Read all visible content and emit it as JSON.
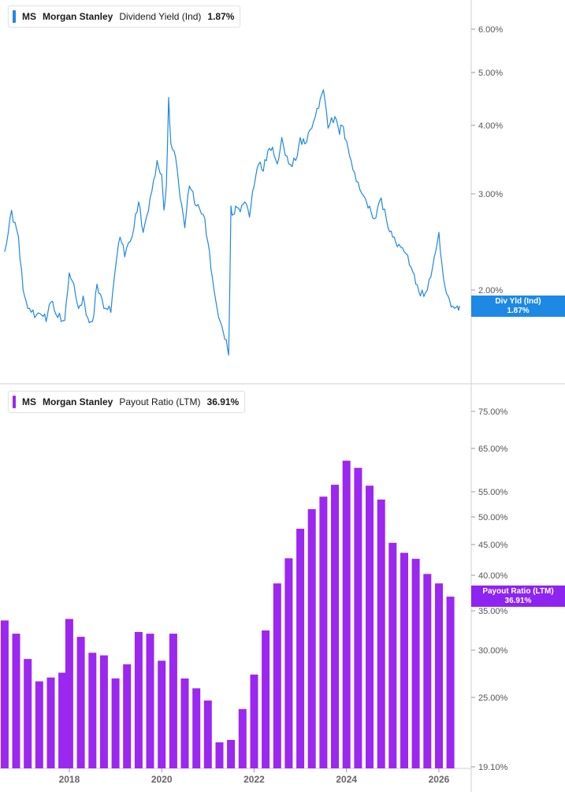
{
  "colors": {
    "yield": "#1e88e5",
    "payout": "#9c27f0",
    "yield_tag": "#1e88e5",
    "payout_tag": "#8e24f0"
  },
  "legend_top": {
    "ticker": "MS",
    "name": "Morgan Stanley",
    "metric": "Dividend Yield (Ind)",
    "value": "1.87%"
  },
  "legend_bottom": {
    "ticker": "MS",
    "name": "Morgan Stanley",
    "metric": "Payout Ratio (LTM)",
    "value": "36.91%"
  },
  "tag_top": {
    "label": "Div Yld (Ind)",
    "value": "1.87%"
  },
  "tag_bottom": {
    "label": "Payout Ratio (LTM)",
    "value": "36.91%"
  },
  "chart_data": [
    {
      "type": "line",
      "scale": "log",
      "series": [
        {
          "name": "Dividend Yield (Ind)",
          "x": [
            2016.6,
            2016.75,
            2016.9,
            2017.0,
            2017.1,
            2017.25,
            2017.4,
            2017.5,
            2017.6,
            2017.75,
            2017.9,
            2018.0,
            2018.1,
            2018.2,
            2018.3,
            2018.4,
            2018.5,
            2018.6,
            2018.75,
            2018.9,
            2019.0,
            2019.1,
            2019.2,
            2019.4,
            2019.5,
            2019.6,
            2019.75,
            2019.9,
            2020.0,
            2020.05,
            2020.1,
            2020.15,
            2020.2,
            2020.3,
            2020.4,
            2020.5,
            2020.6,
            2020.75,
            2020.9,
            2021.0,
            2021.1,
            2021.2,
            2021.3,
            2021.4,
            2021.45,
            2021.5,
            2021.55,
            2021.6,
            2021.7,
            2021.8,
            2021.9,
            2022.0,
            2022.1,
            2022.2,
            2022.3,
            2022.4,
            2022.5,
            2022.6,
            2022.75,
            2022.9,
            2023.0,
            2023.1,
            2023.25,
            2023.4,
            2023.5,
            2023.6,
            2023.75,
            2023.85,
            2023.9,
            2024.0,
            2024.1,
            2024.25,
            2024.4,
            2024.5,
            2024.6,
            2024.75,
            2024.9,
            2025.0,
            2025.1,
            2025.25,
            2025.4,
            2025.5,
            2025.6,
            2025.75,
            2025.9,
            2026.0,
            2026.1,
            2026.2,
            2026.3,
            2026.4,
            2026.45
          ],
          "values": [
            2.35,
            2.8,
            2.5,
            2.0,
            1.85,
            1.78,
            1.8,
            1.75,
            1.9,
            1.78,
            1.76,
            2.15,
            2.05,
            1.85,
            1.95,
            1.78,
            1.75,
            2.05,
            1.85,
            1.82,
            2.2,
            2.5,
            2.3,
            2.6,
            2.9,
            2.55,
            2.95,
            3.45,
            3.25,
            2.8,
            3.1,
            4.5,
            3.7,
            3.5,
            2.95,
            2.6,
            3.1,
            2.85,
            2.75,
            2.45,
            2.1,
            1.85,
            1.72,
            1.62,
            1.52,
            2.85,
            2.75,
            2.85,
            2.78,
            2.9,
            2.72,
            3.1,
            3.4,
            3.3,
            3.6,
            3.65,
            3.4,
            3.8,
            3.4,
            3.45,
            3.8,
            3.7,
            3.95,
            4.3,
            4.65,
            3.95,
            4.15,
            3.85,
            4.0,
            3.75,
            3.45,
            3.15,
            2.95,
            2.85,
            2.7,
            2.95,
            2.6,
            2.5,
            2.4,
            2.35,
            2.2,
            2.05,
            1.95,
            2.0,
            2.3,
            2.55,
            2.1,
            1.95,
            1.87,
            1.87,
            1.87
          ]
        }
      ],
      "yticks": [
        "6.00%",
        "5.00%",
        "4.00%",
        "3.00%",
        "2.00%"
      ],
      "ylim": [
        1.4,
        6.6
      ],
      "xlim": [
        2016.5,
        2026.7
      ]
    },
    {
      "type": "bar",
      "scale": "log",
      "series": [
        {
          "name": "Payout Ratio (LTM)",
          "x": [
            2016.6,
            2016.85,
            2017.1,
            2017.35,
            2017.6,
            2017.85,
            2018.0,
            2018.25,
            2018.5,
            2018.75,
            2019.0,
            2019.25,
            2019.5,
            2019.75,
            2020.0,
            2020.25,
            2020.5,
            2020.75,
            2021.0,
            2021.25,
            2021.5,
            2021.75,
            2022.0,
            2022.25,
            2022.5,
            2022.75,
            2023.0,
            2023.25,
            2023.5,
            2023.75,
            2024.0,
            2024.25,
            2024.5,
            2024.75,
            2025.0,
            2025.25,
            2025.5,
            2025.75,
            2026.0,
            2026.25
          ],
          "values": [
            33.7,
            32.0,
            29.0,
            26.6,
            27.0,
            27.5,
            33.9,
            31.6,
            29.7,
            29.4,
            26.9,
            28.4,
            32.2,
            32.0,
            28.8,
            32.0,
            26.9,
            25.9,
            24.7,
            21.0,
            21.2,
            23.9,
            27.3,
            32.4,
            38.8,
            42.7,
            47.8,
            51.5,
            54.0,
            56.5,
            62.0,
            60.3,
            56.3,
            53.4,
            45.3,
            43.6,
            42.6,
            40.2,
            38.8,
            36.91
          ]
        }
      ],
      "yticks": [
        "75.00%",
        "65.00%",
        "55.00%",
        "50.00%",
        "45.00%",
        "40.00%",
        "35.00%",
        "30.00%",
        "25.00%",
        "19.10%"
      ],
      "ylim": [
        19.1,
        80
      ],
      "xlim": [
        2016.5,
        2026.7
      ]
    }
  ],
  "x_axis_ticks": [
    "2018",
    "2020",
    "2022",
    "2024",
    "2026"
  ]
}
